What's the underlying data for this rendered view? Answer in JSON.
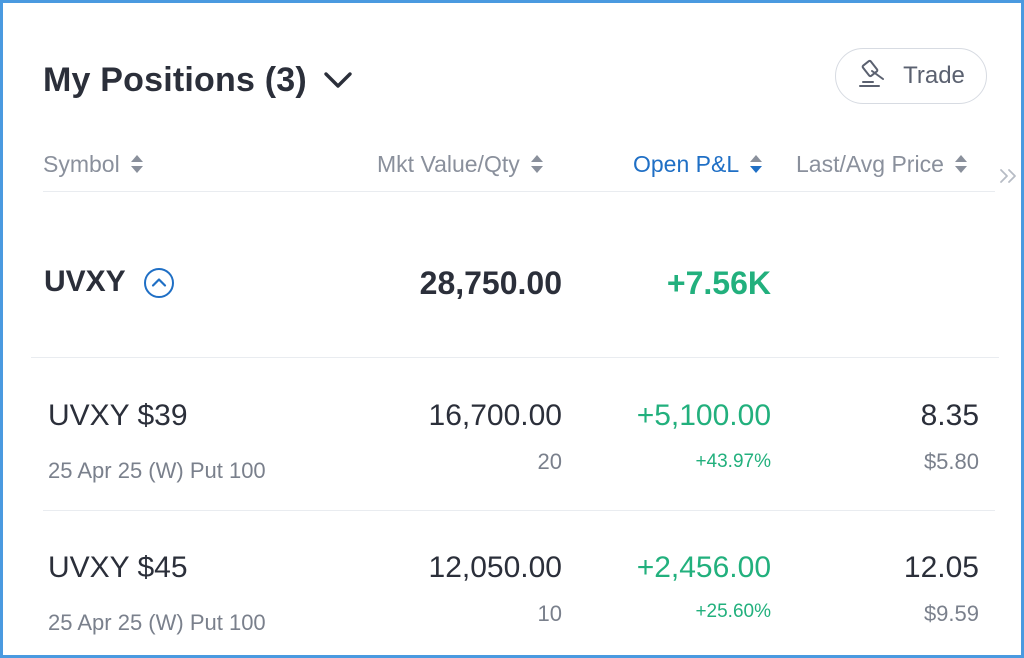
{
  "header": {
    "title": "My Positions (3)",
    "chevron_icon": "chevron-down-icon"
  },
  "trade_button": {
    "label": "Trade",
    "icon": "gavel-icon"
  },
  "columns": [
    {
      "label": "Symbol",
      "sort": "none"
    },
    {
      "label": "Mkt Value/Qty",
      "sort": "none"
    },
    {
      "label": "Open P&L",
      "sort": "descending"
    },
    {
      "label": "Last/Avg Price",
      "sort": "none"
    }
  ],
  "more_columns_icon": "double-chevron-right-icon",
  "group": {
    "symbol": "UVXY",
    "toggle_icon": "chevron-up-circle-icon",
    "mkt_value": "28,750.00",
    "open_pnl": "+7.56K"
  },
  "positions": [
    {
      "symbol": "UVXY $39",
      "desc": "25 Apr 25 (W) Put 100",
      "mkt_value": "16,700.00",
      "qty": "20",
      "open_pnl": "+5,100.00",
      "open_pnl_pct": "+43.97%",
      "last": "8.35",
      "avg": "$5.80"
    },
    {
      "symbol": "UVXY $45",
      "desc": "25 Apr 25 (W) Put 100",
      "mkt_value": "12,050.00",
      "qty": "10",
      "open_pnl": "+2,456.00",
      "open_pnl_pct": "+25.60%",
      "last": "12.05",
      "avg": "$9.59"
    }
  ],
  "colors": {
    "positive": "#22b07d",
    "accent": "#1f6fc5",
    "text": "#2b2f3a",
    "muted": "#7a808c",
    "frame": "#4a9ae0"
  }
}
